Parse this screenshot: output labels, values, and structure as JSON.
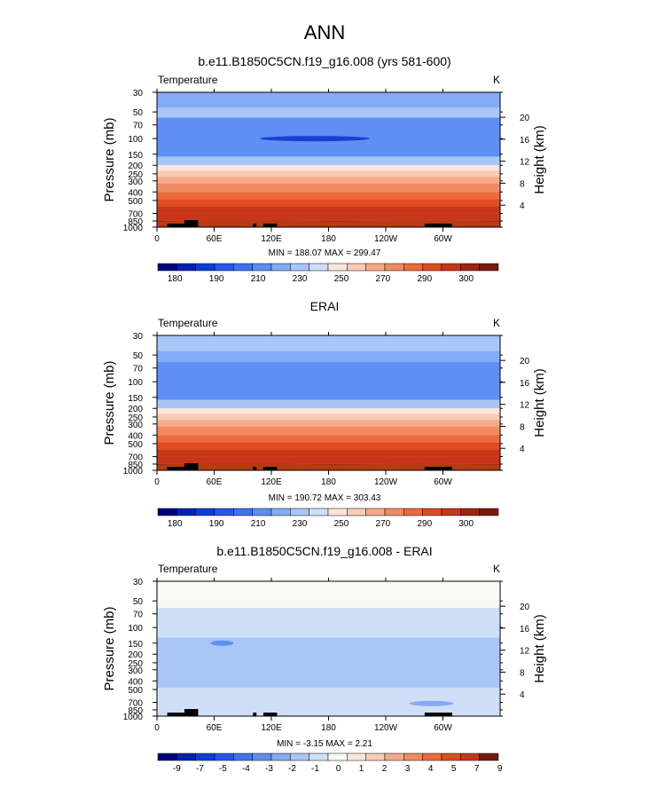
{
  "title": "ANN",
  "shared": {
    "x_ticks": [
      "0",
      "60E",
      "120E",
      "180",
      "120W",
      "60W"
    ],
    "p_ticks": [
      30,
      50,
      70,
      100,
      150,
      200,
      250,
      300,
      400,
      500,
      700,
      850,
      1000
    ],
    "h_ticks": [
      20,
      16,
      12,
      8,
      4
    ],
    "ylabel": "Pressure (mb)",
    "ylabel_right": "Height (km)",
    "left_label": "Temperature",
    "right_label": "K"
  },
  "colors": {
    "temp_scale": [
      "#00007f",
      "#0022b5",
      "#0a3fd6",
      "#2457ee",
      "#3c73f2",
      "#5d8ff4",
      "#84abf6",
      "#a9c6f7",
      "#cfdff7",
      "#fbe6dc",
      "#f8ccb5",
      "#f5ab8a",
      "#f18a60",
      "#ec6a3c",
      "#df4c1f",
      "#c8361a",
      "#9e2612",
      "#7a1a0c"
    ],
    "diff_scale": [
      "#00007f",
      "#0022b5",
      "#0a3fd6",
      "#2457ee",
      "#3c73f2",
      "#5d8ff4",
      "#84abf6",
      "#a9c6f7",
      "#cfdff7",
      "#f9faf4",
      "#fbe6dc",
      "#f8ccb5",
      "#f5ab8a",
      "#f18a60",
      "#ec6a3c",
      "#df4c1f",
      "#c8361a",
      "#7a1a0c"
    ]
  },
  "chart_data": [
    {
      "type": "heatmap",
      "title": "b.e11.B1850C5CN.f19_g16.008 (yrs 581-600)",
      "xlabel": "",
      "ylabel": "Pressure (mb)",
      "minmax": "MIN = 188.07  MAX = 299.47",
      "colorbar_labels": [
        "180",
        "190",
        "210",
        "230",
        "250",
        "270",
        "290",
        "300"
      ],
      "bands_top_to_bottom": [
        {
          "p_top": 30,
          "p_bot": 45,
          "value": 205
        },
        {
          "p_top": 45,
          "p_bot": 58,
          "value": 210
        },
        {
          "p_top": 58,
          "p_bot": 160,
          "value": 200
        },
        {
          "p_top": 160,
          "p_bot": 200,
          "value": 210
        },
        {
          "p_top": 200,
          "p_bot": 230,
          "value": 220
        },
        {
          "p_top": 230,
          "p_bot": 270,
          "value": 230
        },
        {
          "p_top": 270,
          "p_bot": 320,
          "value": 245
        },
        {
          "p_top": 320,
          "p_bot": 400,
          "value": 255
        },
        {
          "p_top": 400,
          "p_bot": 480,
          "value": 262
        },
        {
          "p_top": 480,
          "p_bot": 580,
          "value": 270
        },
        {
          "p_top": 580,
          "p_bot": 700,
          "value": 280
        },
        {
          "p_top": 700,
          "p_bot": 850,
          "value": 288
        },
        {
          "p_top": 850,
          "p_bot": 1000,
          "value": 295
        }
      ]
    },
    {
      "type": "heatmap",
      "title": "ERAI",
      "xlabel": "",
      "ylabel": "Pressure (mb)",
      "minmax": "MIN = 190.72  MAX = 303.43",
      "colorbar_labels": [
        "180",
        "190",
        "210",
        "230",
        "250",
        "270",
        "290",
        "300"
      ],
      "bands_top_to_bottom": [
        {
          "p_top": 30,
          "p_bot": 45,
          "value": 210
        },
        {
          "p_top": 45,
          "p_bot": 60,
          "value": 205
        },
        {
          "p_top": 60,
          "p_bot": 160,
          "value": 200
        },
        {
          "p_top": 160,
          "p_bot": 200,
          "value": 210
        },
        {
          "p_top": 200,
          "p_bot": 230,
          "value": 220
        },
        {
          "p_top": 230,
          "p_bot": 270,
          "value": 230
        },
        {
          "p_top": 270,
          "p_bot": 320,
          "value": 245
        },
        {
          "p_top": 320,
          "p_bot": 400,
          "value": 255
        },
        {
          "p_top": 400,
          "p_bot": 480,
          "value": 262
        },
        {
          "p_top": 480,
          "p_bot": 580,
          "value": 270
        },
        {
          "p_top": 580,
          "p_bot": 700,
          "value": 280
        },
        {
          "p_top": 700,
          "p_bot": 850,
          "value": 288
        },
        {
          "p_top": 850,
          "p_bot": 1000,
          "value": 297
        }
      ]
    },
    {
      "type": "heatmap",
      "title": "b.e11.B1850C5CN.f19_g16.008 - ERAI",
      "xlabel": "",
      "ylabel": "Pressure (mb)",
      "minmax": "MIN = -3.15  MAX =  2.21",
      "colorbar_labels": [
        "-9",
        "-7",
        "-5",
        "-4",
        "-3",
        "-2",
        "-1",
        "0",
        "1",
        "2",
        "3",
        "4",
        "5",
        "7",
        "9"
      ],
      "bands_top_to_bottom": [
        {
          "p_top": 30,
          "p_bot": 60,
          "value": -0.5
        },
        {
          "p_top": 60,
          "p_bot": 130,
          "value": -1.5
        },
        {
          "p_top": 130,
          "p_bot": 480,
          "value": -2.5
        },
        {
          "p_top": 480,
          "p_bot": 1000,
          "value": -1.5
        }
      ]
    }
  ]
}
